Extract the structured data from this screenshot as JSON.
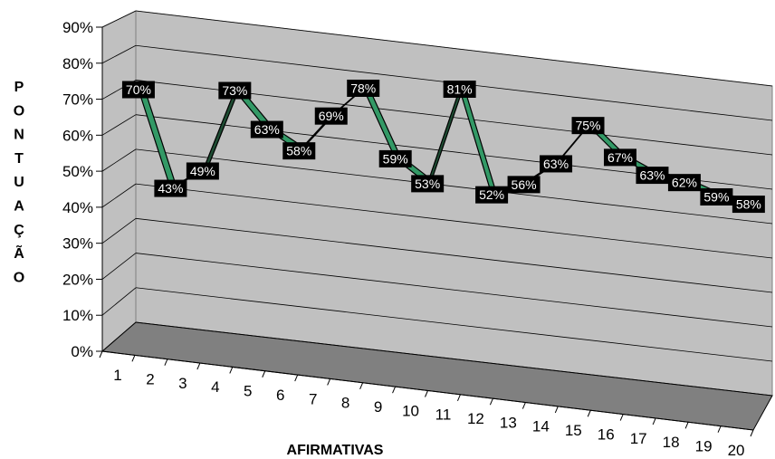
{
  "chart_data": {
    "type": "line",
    "style": "3d-ribbon",
    "title": "",
    "xlabel": "AFIRMATIVAS",
    "ylabel": "PONTUAÇÃO",
    "ylabel_letters": [
      "P",
      "O",
      "N",
      "T",
      "U",
      "A",
      "Ç",
      "Ã",
      "O"
    ],
    "categories": [
      "1",
      "2",
      "3",
      "4",
      "5",
      "6",
      "7",
      "8",
      "9",
      "10",
      "11",
      "12",
      "13",
      "14",
      "15",
      "16",
      "17",
      "18",
      "19",
      "20"
    ],
    "series": [
      {
        "values": [
          70,
          43,
          49,
          73,
          63,
          58,
          69,
          78,
          59,
          53,
          81,
          52,
          56,
          63,
          75,
          67,
          63,
          62,
          59,
          58
        ],
        "labels": [
          "70%",
          "43%",
          "49%",
          "73%",
          "63%",
          "58%",
          "69%",
          "78%",
          "59%",
          "53%",
          "81%",
          "52%",
          "56%",
          "63%",
          "75%",
          "67%",
          "63%",
          "62%",
          "59%",
          "58%"
        ]
      }
    ],
    "ylim": [
      0,
      90
    ],
    "yticks": [
      "0%",
      "10%",
      "20%",
      "30%",
      "40%",
      "50%",
      "60%",
      "70%",
      "80%",
      "90%"
    ],
    "grid": true,
    "legend": "none",
    "colors": {
      "ribbon_top": "#339966",
      "ribbon_side": "#1e4d33",
      "wall": "#c0c0c0",
      "floor": "#808080",
      "label_bg": "#000000",
      "label_text": "#ffffff"
    }
  }
}
